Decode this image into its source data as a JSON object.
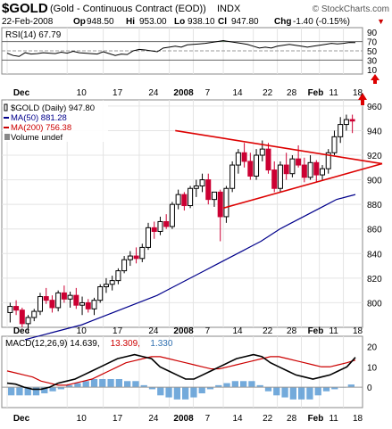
{
  "header": {
    "symbol": "$GOLD",
    "description": "(Gold - Continuous Contract (EOD))",
    "exchange": "INDX",
    "watermark": "© StockCharts.com",
    "date": "22-Feb-2008",
    "ohlc": [
      {
        "label": "Op",
        "value": "948.50"
      },
      {
        "label": "Hi",
        "value": "953.00"
      },
      {
        "label": "Lo",
        "value": "938.10"
      },
      {
        "label": "Cl",
        "value": "947.80"
      },
      {
        "label": "Chg",
        "value": "-1.40 (-0.15%)"
      }
    ],
    "chg_arrow": "▼"
  },
  "rsi": {
    "label": "RSI(14) 67.79",
    "levels": [
      "90",
      "70",
      "50",
      "30",
      "10"
    ],
    "values": [
      45,
      40,
      38,
      46,
      43,
      44,
      46,
      45,
      44,
      47,
      45,
      49,
      46,
      45,
      44,
      43,
      48,
      44,
      40,
      43,
      42,
      50,
      53,
      52,
      50,
      48,
      56,
      58,
      60,
      58,
      63,
      64,
      65,
      66,
      68,
      70,
      72,
      70,
      68,
      66,
      64,
      60,
      56,
      58,
      56,
      60,
      62,
      64,
      62,
      60,
      58,
      60,
      62,
      64,
      66,
      65,
      66,
      68,
      67.79
    ],
    "axis": {
      "min": 0,
      "max": 100
    }
  },
  "price": {
    "legend": [
      {
        "text": "$GOLD (Daily) 947.80",
        "color": "#000000"
      },
      {
        "text": "MA(50) 881.28",
        "color": "#00008b"
      },
      {
        "text": "MA(200) 756.38",
        "color": "#cc0000"
      },
      {
        "text": "Volume undef",
        "color": "#000000"
      }
    ],
    "yticks": [
      "960",
      "940",
      "920",
      "900",
      "880",
      "860",
      "840",
      "820",
      "800"
    ]
  },
  "macd": {
    "label": "MACD(12,26,9) 14.639, 13.309, 1.330",
    "parts": [
      {
        "text": "MACD(12,26,9) 14.639,",
        "color": "#000000"
      },
      {
        "text": " 13.309,",
        "color": "#cc0000"
      },
      {
        "text": " 1.330",
        "color": "#3070b0"
      }
    ],
    "yticks": [
      "20",
      "10",
      "0"
    ]
  },
  "xlabels": [
    "Dec",
    "10",
    "17",
    "24",
    "2008",
    "7",
    "14",
    "22",
    "28",
    "Feb",
    "11",
    "18"
  ],
  "chart_data": {
    "type": "candlestick",
    "title": "$GOLD (Gold - Continuous Contract (EOD))",
    "date_range": [
      "2007-11-26",
      "2008-02-22"
    ],
    "ohlc": [
      [
        792,
        800,
        784,
        797
      ],
      [
        797,
        802,
        790,
        794
      ],
      [
        794,
        796,
        780,
        783
      ],
      [
        783,
        790,
        775,
        788
      ],
      [
        788,
        795,
        785,
        793
      ],
      [
        793,
        808,
        790,
        805
      ],
      [
        805,
        812,
        799,
        802
      ],
      [
        802,
        806,
        792,
        796
      ],
      [
        796,
        810,
        793,
        808
      ],
      [
        808,
        814,
        800,
        803
      ],
      [
        803,
        809,
        796,
        806
      ],
      [
        806,
        812,
        795,
        798
      ],
      [
        798,
        805,
        790,
        800
      ],
      [
        800,
        803,
        792,
        795
      ],
      [
        795,
        804,
        790,
        802
      ],
      [
        802,
        815,
        800,
        813
      ],
      [
        813,
        820,
        808,
        815
      ],
      [
        815,
        822,
        810,
        818
      ],
      [
        818,
        828,
        815,
        826
      ],
      [
        826,
        838,
        824,
        835
      ],
      [
        835,
        842,
        830,
        838
      ],
      [
        838,
        845,
        832,
        836
      ],
      [
        836,
        848,
        833,
        845
      ],
      [
        845,
        865,
        843,
        861
      ],
      [
        861,
        866,
        852,
        858
      ],
      [
        858,
        870,
        855,
        866
      ],
      [
        866,
        872,
        860,
        862
      ],
      [
        862,
        882,
        860,
        880
      ],
      [
        880,
        892,
        876,
        888
      ],
      [
        888,
        890,
        875,
        879
      ],
      [
        879,
        895,
        877,
        893
      ],
      [
        893,
        900,
        886,
        895
      ],
      [
        895,
        905,
        890,
        900
      ],
      [
        900,
        905,
        880,
        884
      ],
      [
        884,
        890,
        878,
        890
      ],
      [
        890,
        892,
        850,
        870
      ],
      [
        870,
        895,
        865,
        893
      ],
      [
        893,
        915,
        890,
        912
      ],
      [
        912,
        925,
        905,
        922
      ],
      [
        922,
        930,
        910,
        915
      ],
      [
        915,
        922,
        900,
        903
      ],
      [
        903,
        925,
        900,
        920
      ],
      [
        920,
        932,
        915,
        925
      ],
      [
        925,
        930,
        905,
        908
      ],
      [
        908,
        915,
        890,
        893
      ],
      [
        893,
        915,
        890,
        912
      ],
      [
        912,
        922,
        900,
        905
      ],
      [
        905,
        920,
        902,
        917
      ],
      [
        917,
        928,
        910,
        912
      ],
      [
        912,
        918,
        898,
        902
      ],
      [
        902,
        920,
        900,
        914
      ],
      [
        914,
        916,
        898,
        904
      ],
      [
        904,
        912,
        900,
        909
      ],
      [
        909,
        925,
        905,
        922
      ],
      [
        922,
        940,
        920,
        935
      ],
      [
        935,
        951,
        930,
        945
      ],
      [
        945,
        953,
        940,
        949
      ],
      [
        949,
        953,
        938,
        947.8
      ]
    ],
    "ma50": [
      770,
      772,
      774,
      776,
      778,
      780,
      782,
      785,
      788,
      791,
      794,
      797,
      800,
      803,
      806,
      810,
      814,
      818,
      822,
      826,
      830,
      834,
      838,
      842,
      846,
      850,
      855,
      860,
      864,
      868,
      872,
      876,
      880,
      884,
      886,
      888
    ],
    "ma200_last": 756.38,
    "ma50_last": 881.28,
    "triangle": {
      "upper": [
        [
          28,
          940
        ],
        [
          57,
          916
        ]
      ],
      "lower": [
        [
          36,
          877
        ],
        [
          57,
          916
        ]
      ]
    },
    "price_ylim": [
      780,
      965
    ],
    "macd_line": [
      2,
      1.5,
      0,
      -1,
      -1,
      0,
      2,
      3,
      4,
      6,
      8,
      10,
      12,
      14,
      15,
      16,
      15,
      14,
      10,
      8,
      6,
      4,
      4,
      6,
      8,
      10,
      12,
      14,
      15,
      16,
      15,
      12,
      10,
      8,
      6,
      5,
      4,
      5,
      6,
      8,
      10,
      14.639
    ],
    "macd_signal": [
      8,
      7,
      6,
      5,
      3,
      2,
      1,
      1,
      2,
      3,
      4,
      6,
      8,
      10,
      12,
      13,
      14,
      15,
      15,
      14,
      13,
      12,
      11,
      10,
      9,
      9,
      10,
      11,
      12,
      13,
      14,
      15,
      15,
      14,
      13,
      12,
      11,
      10,
      10,
      11,
      12,
      13.309
    ],
    "macd_hist": [
      -4,
      -4,
      -4,
      -4,
      -3,
      -2,
      -1,
      1,
      2,
      3,
      4,
      4,
      4,
      4,
      3,
      3,
      1,
      -1,
      -4,
      -5,
      -6,
      -6,
      -5,
      -3,
      -1,
      1,
      2,
      3,
      3,
      3,
      1,
      -2,
      -4,
      -5,
      -6,
      -6,
      -6,
      -4,
      -2,
      -1,
      0,
      1.33
    ],
    "macd_ylim": [
      -10,
      25
    ]
  }
}
